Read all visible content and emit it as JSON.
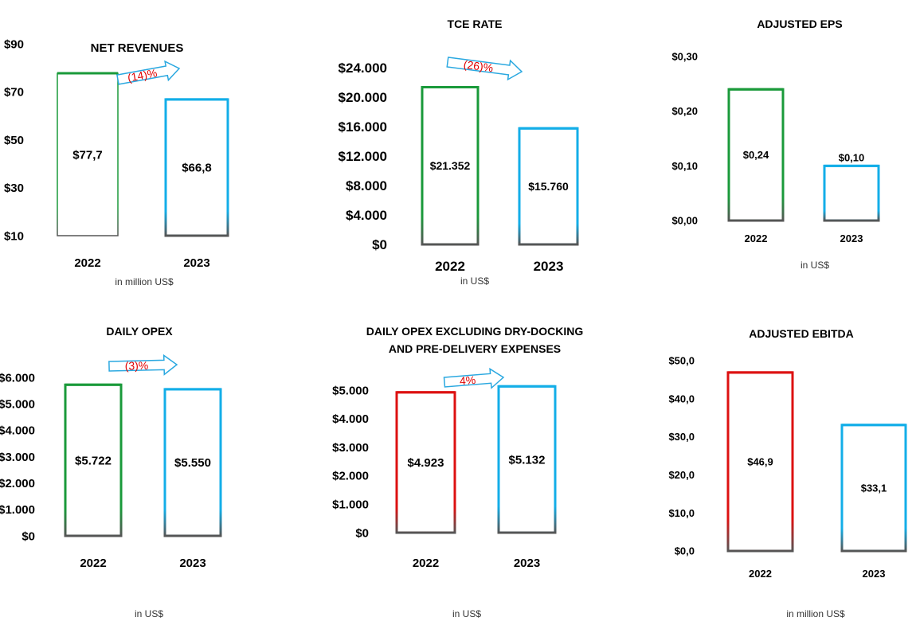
{
  "colors": {
    "green": "#1a9a3a",
    "blue": "#13aee8",
    "red": "#dd1111",
    "arrow_stroke": "#2aa8e0",
    "change_text": "#e00000"
  },
  "chart_data": [
    {
      "type": "bar",
      "title": "NET REVENUES",
      "unit_note": "in million US$",
      "categories": [
        "2022",
        "2023"
      ],
      "values": [
        77.7,
        66.8
      ],
      "value_labels": [
        "$77,7",
        "$66,8"
      ],
      "y_ticks": [
        "$10",
        "$30",
        "$50",
        "$70",
        "$90"
      ],
      "ylim": [
        10,
        90
      ],
      "bar_colors": [
        "green",
        "blue"
      ],
      "change": "(14)%"
    },
    {
      "type": "bar",
      "title": "TCE RATE",
      "unit_note": "in US$",
      "categories": [
        "2022",
        "2023"
      ],
      "values": [
        21352,
        15760
      ],
      "value_labels": [
        "$21.352",
        "$15.760"
      ],
      "y_ticks": [
        "$0",
        "$4.000",
        "$8.000",
        "$12.000",
        "$16.000",
        "$20.000",
        "$24.000"
      ],
      "ylim": [
        0,
        24000
      ],
      "bar_colors": [
        "green",
        "blue"
      ],
      "change": "(26)%"
    },
    {
      "type": "bar",
      "title": "ADJUSTED EPS",
      "unit_note": "in US$",
      "categories": [
        "2022",
        "2023"
      ],
      "values": [
        0.24,
        0.1
      ],
      "value_labels": [
        "$0,24",
        "$0,10"
      ],
      "y_ticks": [
        "$0,00",
        "$0,10",
        "$0,20",
        "$0,30"
      ],
      "ylim": [
        0,
        0.3
      ],
      "bar_colors": [
        "green",
        "blue"
      ],
      "change": ""
    },
    {
      "type": "bar",
      "title": "DAILY OPEX",
      "unit_note": "in US$",
      "categories": [
        "2022",
        "2023"
      ],
      "values": [
        5722,
        5550
      ],
      "value_labels": [
        "$5.722",
        "$5.550"
      ],
      "y_ticks": [
        "$0",
        "$1.000",
        "$2.000",
        "$3.000",
        "$4.000",
        "$5.000",
        "$6.000"
      ],
      "ylim": [
        0,
        6000
      ],
      "bar_colors": [
        "green",
        "blue"
      ],
      "change": "(3)%"
    },
    {
      "type": "bar",
      "title": "DAILY OPEX EXCLUDING DRY-DOCKING",
      "title_line2": "AND PRE-DELIVERY EXPENSES",
      "unit_note": "in US$",
      "categories": [
        "2022",
        "2023"
      ],
      "values": [
        4923,
        5132
      ],
      "value_labels": [
        "$4.923",
        "$5.132"
      ],
      "y_ticks": [
        "$0",
        "$1.000",
        "$2.000",
        "$3.000",
        "$4.000",
        "$5.000"
      ],
      "ylim": [
        0,
        5000
      ],
      "bar_colors": [
        "red",
        "blue"
      ],
      "change": "4%"
    },
    {
      "type": "bar",
      "title": "ADJUSTED EBITDA",
      "unit_note": "in million US$",
      "categories": [
        "2022",
        "2023"
      ],
      "values": [
        46.9,
        33.1
      ],
      "value_labels": [
        "$46,9",
        "$33,1"
      ],
      "y_ticks": [
        "$0,0",
        "$10,0",
        "$20,0",
        "$30,0",
        "$40,0",
        "$50,0"
      ],
      "ylim": [
        0,
        50
      ],
      "bar_colors": [
        "red",
        "blue"
      ],
      "change": ""
    }
  ]
}
